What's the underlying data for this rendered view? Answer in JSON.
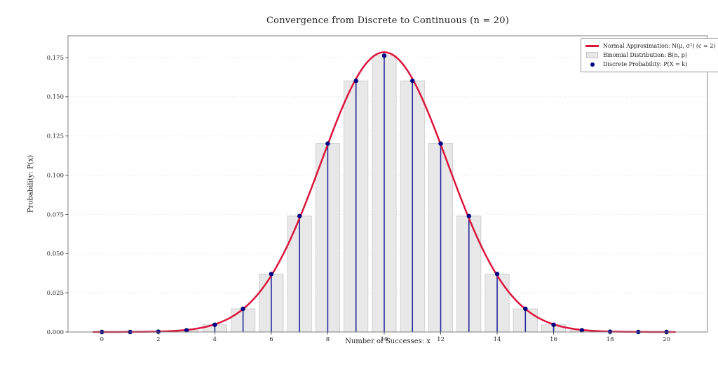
{
  "figure": {
    "title": "Convergence from Discrete to Continuous (n = 20)",
    "xlabel": "Number of Successes: x",
    "ylabel": "Probability: P(x)"
  },
  "legend": {
    "position": "upper right",
    "items": [
      {
        "label": "Normal Approximation: N(μ, σ²) (c = 2)",
        "marker": "line-swatch",
        "color": "#DC143C"
      },
      {
        "label": "Binomial Distribution: B(n, p)",
        "marker": "patch-swatch",
        "color": "#E8E8E8"
      },
      {
        "label": "Discrete Probability: P(X = k)",
        "marker": "dot-swatch",
        "color": "#000080"
      }
    ]
  },
  "chart_data": {
    "type": "bar",
    "title": "Convergence from Discrete to Continuous (n = 20)",
    "xlabel": "Number of Successes: x",
    "ylabel": "Probability: P(x)",
    "categories": [
      0,
      1,
      2,
      3,
      4,
      5,
      6,
      7,
      8,
      9,
      10,
      11,
      12,
      13,
      14,
      15,
      16,
      17,
      18,
      19,
      20
    ],
    "values": [
      1e-06,
      1.9e-05,
      0.000181,
      0.001087,
      0.004621,
      0.014786,
      0.036964,
      0.073929,
      0.120134,
      0.160179,
      0.176197,
      0.160179,
      0.120134,
      0.073929,
      0.036964,
      0.014786,
      0.004621,
      0.001087,
      0.000181,
      1.9e-05,
      1e-06
    ],
    "series": [
      {
        "name": "Binomial Distribution: B(n, p)",
        "type": "bar",
        "values": [
          1e-06,
          1.9e-05,
          0.000181,
          0.001087,
          0.004621,
          0.014786,
          0.036964,
          0.073929,
          0.120134,
          0.160179,
          0.176197,
          0.160179,
          0.120134,
          0.073929,
          0.036964,
          0.014786,
          0.004621,
          0.001087,
          0.000181,
          1.9e-05,
          1e-06
        ]
      },
      {
        "name": "Discrete Probability: P(X = k)",
        "type": "stem",
        "values": [
          1e-06,
          1.9e-05,
          0.000181,
          0.001087,
          0.004621,
          0.014786,
          0.036964,
          0.073929,
          0.120134,
          0.160179,
          0.176197,
          0.160179,
          0.120134,
          0.073929,
          0.036964,
          0.014786,
          0.004621,
          0.001087,
          0.000181,
          1.9e-05,
          1e-06
        ]
      },
      {
        "name": "Normal Approximation: N(μ, σ²) (c = 2)",
        "type": "line",
        "params": {
          "mu": 10,
          "sigma": 2.23607,
          "x_start": -0.3,
          "x_end": 20.3
        }
      }
    ],
    "xticks": [
      0,
      2,
      4,
      6,
      8,
      10,
      12,
      14,
      16,
      18,
      20
    ],
    "xtick_labels": [
      "0",
      "2",
      "4",
      "6",
      "8",
      "10",
      "12",
      "14",
      "16",
      "18",
      "20"
    ],
    "yticks": [
      0,
      0.025,
      0.05,
      0.075,
      0.1,
      0.125,
      0.15,
      0.175
    ],
    "ytick_labels": [
      "0.000",
      "0.025",
      "0.050",
      "0.075",
      "0.100",
      "0.125",
      "0.150",
      "0.175"
    ],
    "xlim": [
      -1.2,
      21.45
    ],
    "ylim": [
      0,
      0.1889
    ],
    "bar_width": 0.85,
    "grid": "horizontal dotted",
    "legend_position": "upper right",
    "colors": {
      "curve": "#DC143C",
      "stem": "#26269B",
      "dot": "#000080",
      "bar_fill": "#E8E8E8",
      "bar_edge": "#C9C9C9",
      "grid": "#DCDCDC",
      "spine": "#7F7F7F",
      "tick": "#3A3A3A",
      "text": "#262626"
    }
  }
}
